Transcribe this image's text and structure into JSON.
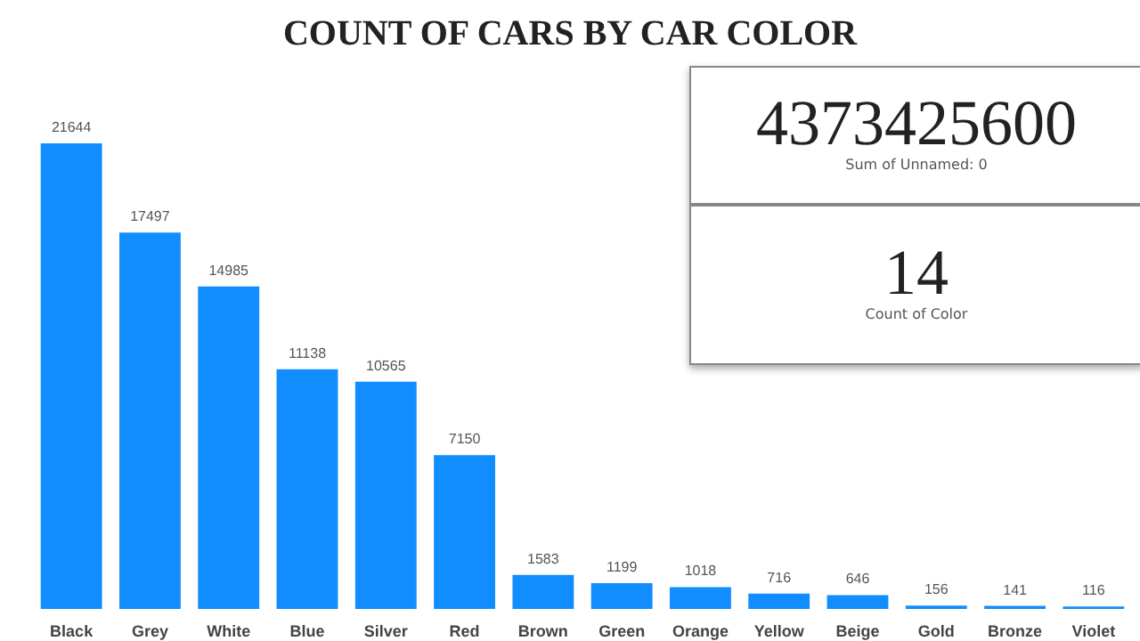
{
  "chart_data": [
    {
      "type": "bar",
      "title": "COUNT OF CARS BY CAR COLOR",
      "categories": [
        "Black",
        "Grey",
        "White",
        "Blue",
        "Silver",
        "Red",
        "Brown",
        "Green",
        "Orange",
        "Yellow",
        "Beige",
        "Gold",
        "Bronze",
        "Violet"
      ],
      "values": [
        21644,
        17497,
        14985,
        11138,
        10565,
        7150,
        1583,
        1199,
        1018,
        716,
        646,
        156,
        141,
        116
      ],
      "color": "#118dff",
      "data_labels": true,
      "tick_labels": "x"
    },
    {
      "type": "other",
      "title": "4373425600",
      "subtitle": "Sum of Unnamed: 0"
    },
    {
      "type": "other",
      "title": "14",
      "subtitle": "Count of Color"
    }
  ]
}
